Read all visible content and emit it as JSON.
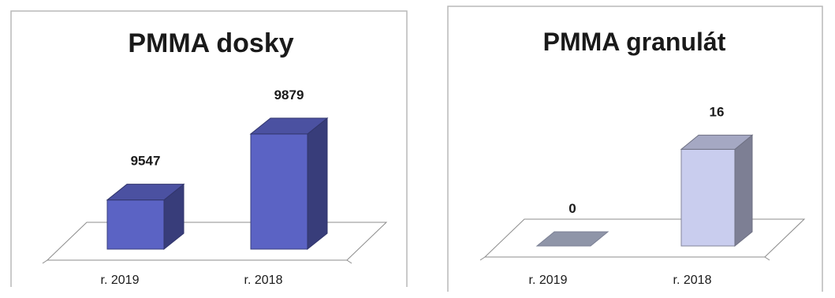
{
  "chart_data": [
    {
      "type": "bar",
      "title": "PMMA dosky",
      "categories": [
        "r. 2019",
        "r. 2018"
      ],
      "values": [
        9547,
        9879
      ],
      "value_labels": [
        "9547",
        "9879"
      ],
      "style": "3d-column",
      "bar_color": "#5b63c4",
      "ylim": [
        9300,
        9950
      ],
      "grid": false,
      "legend": "none"
    },
    {
      "type": "bar",
      "title": "PMMA granulát",
      "categories": [
        "r. 2019",
        "r. 2018"
      ],
      "values": [
        0,
        16
      ],
      "value_labels": [
        "0",
        "16"
      ],
      "style": "3d-column",
      "bar_color": "#c9cdee",
      "ylim": [
        0,
        18
      ],
      "grid": false,
      "legend": "none"
    }
  ]
}
